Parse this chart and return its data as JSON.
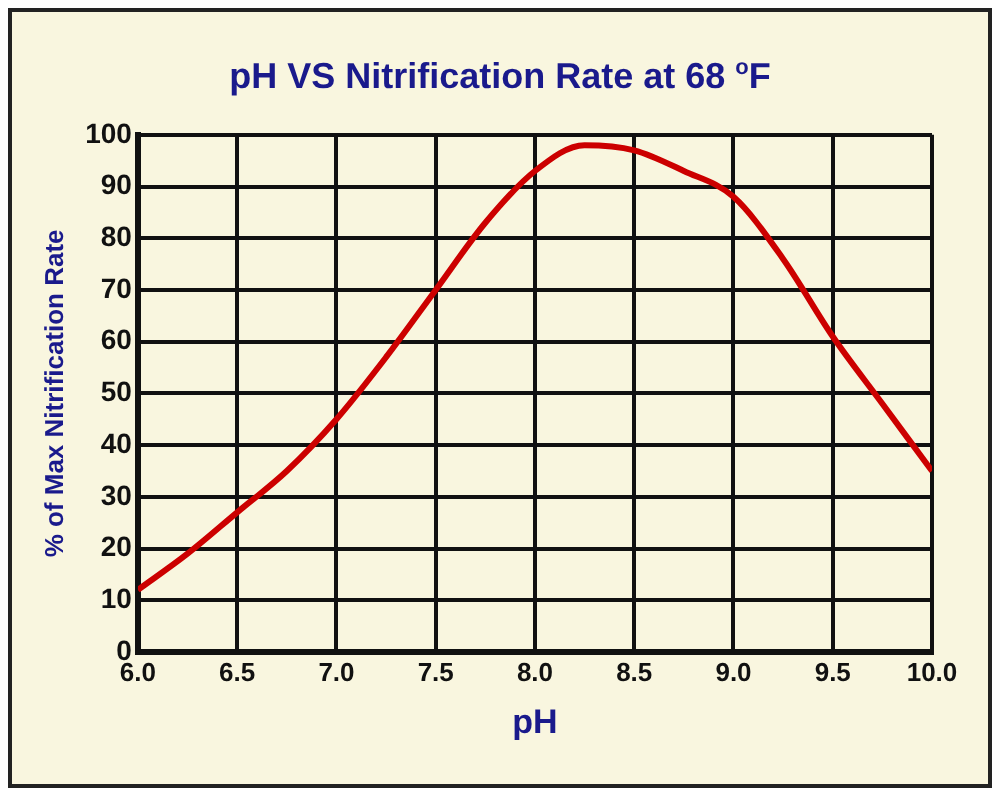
{
  "chart_data": {
    "type": "line",
    "title": "pH VS Nitrification Rate at 68 $^{o}$F",
    "xlabel": "pH",
    "ylabel": "% of Max Nitrification Rate",
    "x": [
      6.0,
      6.25,
      6.5,
      6.75,
      7.0,
      7.25,
      7.5,
      7.75,
      8.0,
      8.25,
      8.5,
      8.75,
      9.0,
      9.25,
      9.5,
      9.75,
      10.0
    ],
    "series": [
      {
        "color": "#cc0000",
        "values": [
          12,
          19,
          27,
          35,
          45,
          57,
          70,
          83,
          93,
          98,
          97,
          93,
          88,
          76,
          61,
          48,
          35
        ]
      }
    ],
    "xlim": [
      6.0,
      10.0
    ],
    "xticks": [
      {
        "value": 6,
        "label": "6.0"
      },
      6.5,
      {
        "value": 7,
        "label": "7.0"
      },
      7.5,
      {
        "value": 8,
        "label": "8.0"
      },
      8.5,
      {
        "value": 9,
        "label": "9.0"
      },
      9.5,
      {
        "value": 10,
        "label": "10.0"
      }
    ],
    "ylim": [
      0,
      100
    ],
    "yticks": [
      0,
      10,
      20,
      30,
      40,
      50,
      60,
      70,
      80,
      90,
      100
    ],
    "grid": true,
    "legend": false,
    "marker": "none",
    "line_style": "solid"
  }
}
